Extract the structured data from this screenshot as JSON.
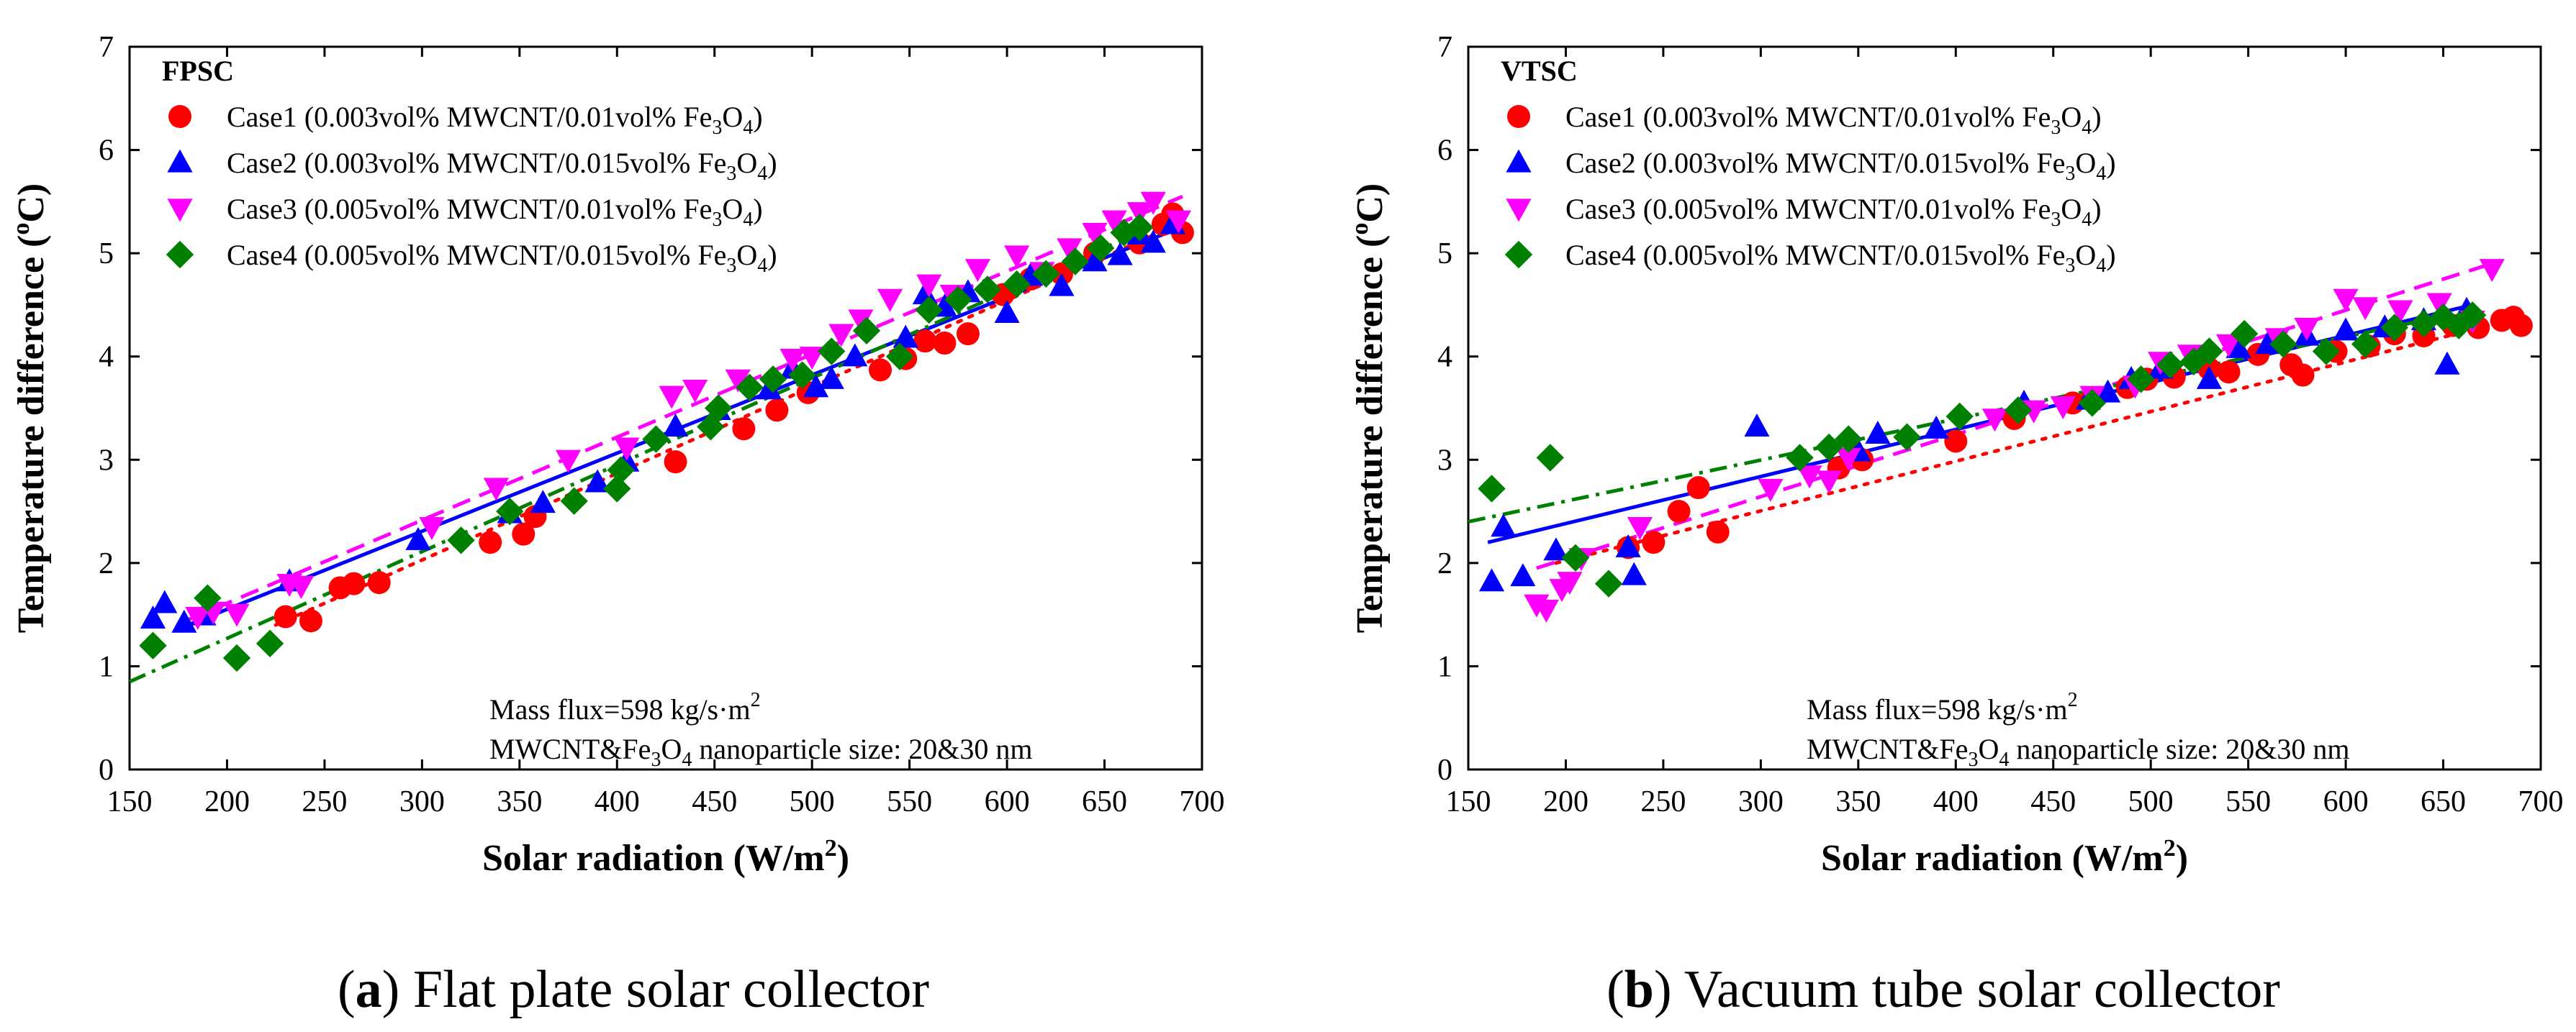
{
  "figure": {
    "captions": [
      {
        "open": "(",
        "letter": "a",
        "close": ")",
        "text": " Flat plate solar collector"
      },
      {
        "open": "(",
        "letter": "b",
        "close": ")",
        "text": " Vacuum tube solar collector"
      }
    ]
  },
  "colors": {
    "case1": "#ff0000",
    "case2": "#0000ff",
    "case3": "#ff00ff",
    "case4": "#008000"
  },
  "chart_data": [
    {
      "type": "scatter",
      "id": "FPSC",
      "panel_label": "FPSC",
      "xlabel": "Solar radiation (W/m",
      "xlabel_sup": "2",
      "xlabel_end": ")",
      "ylabel": "Temperature difference (",
      "ylabel_sup": "o",
      "ylabel_end": "C)",
      "xlim": [
        150,
        700
      ],
      "ylim": [
        0,
        7
      ],
      "xticks": [
        150,
        200,
        250,
        300,
        350,
        400,
        450,
        500,
        550,
        600,
        650,
        700
      ],
      "yticks": [
        0,
        1,
        2,
        3,
        4,
        5,
        6,
        7
      ],
      "legend_position": "top-left",
      "annotations": {
        "line1": "Mass flux=598 kg/s·m",
        "line1_sup": "2",
        "line2_a": "MWCNT&Fe",
        "line2_sub": "3",
        "line2_b": "O",
        "line2_sub2": "4",
        "line2_c": " nanoparticle size: 20&30 nm"
      },
      "series": [
        {
          "name": "Case1",
          "legend_a": "Case1 (0.003vol% MWCNT/0.01vol% Fe",
          "legend_sub": "3",
          "legend_b": "O",
          "legend_sub2": "4",
          "legend_c": ")",
          "marker": "circle",
          "fit": "dot",
          "x": [
            230,
            243,
            258,
            265,
            278,
            335,
            352,
            358,
            430,
            465,
            482,
            498,
            535,
            548,
            558,
            568,
            580,
            598,
            612,
            628,
            645,
            668,
            680,
            685,
            690
          ],
          "y": [
            1.48,
            1.44,
            1.76,
            1.8,
            1.81,
            2.2,
            2.28,
            2.45,
            2.98,
            3.3,
            3.48,
            3.65,
            3.87,
            3.98,
            4.15,
            4.13,
            4.22,
            4.6,
            4.75,
            4.8,
            5.0,
            5.1,
            5.28,
            5.38,
            5.2
          ],
          "fit_line": [
            [
              225,
              1.4
            ],
            [
              690,
              5.3
            ]
          ]
        },
        {
          "name": "Case2",
          "legend_a": "Case2 (0.003vol% MWCNT/0.015vol% Fe",
          "legend_sub": "3",
          "legend_b": "O",
          "legend_sub2": "4",
          "legend_c": ")",
          "marker": "triangle-up",
          "fit": "solid",
          "x": [
            162,
            168,
            178,
            188,
            232,
            298,
            345,
            362,
            390,
            405,
            430,
            452,
            478,
            490,
            502,
            510,
            522,
            548,
            558,
            568,
            580,
            600,
            612,
            628,
            645,
            658,
            668,
            675,
            685
          ],
          "y": [
            1.46,
            1.61,
            1.42,
            1.49,
            1.82,
            2.22,
            2.48,
            2.58,
            2.78,
            2.98,
            3.32,
            3.48,
            3.68,
            3.88,
            3.7,
            3.78,
            4.0,
            4.18,
            4.6,
            4.48,
            4.62,
            4.42,
            4.78,
            4.68,
            4.92,
            4.98,
            5.18,
            5.1,
            5.28
          ],
          "fit_line": [
            [
              180,
              1.4
            ],
            [
              685,
              5.22
            ]
          ]
        },
        {
          "name": "Case3",
          "legend_a": "Case3 (0.005vol% MWCNT/0.01vol% Fe",
          "legend_sub": "3",
          "legend_b": "O",
          "legend_sub2": "4",
          "legend_c": ")",
          "marker": "triangle-down",
          "fit": "dash",
          "x": [
            185,
            193,
            205,
            232,
            238,
            305,
            338,
            375,
            405,
            428,
            440,
            462,
            490,
            500,
            515,
            525,
            540,
            560,
            572,
            585,
            605,
            618,
            632,
            645,
            655,
            668,
            675,
            688
          ],
          "y": [
            1.48,
            1.53,
            1.51,
            1.8,
            1.78,
            2.35,
            2.73,
            3.0,
            3.12,
            3.62,
            3.68,
            3.78,
            3.98,
            4.0,
            4.22,
            4.36,
            4.56,
            4.7,
            4.6,
            4.85,
            4.98,
            4.82,
            5.05,
            5.2,
            5.32,
            5.4,
            5.5,
            5.32
          ],
          "fit_line": [
            [
              180,
              1.45
            ],
            [
              690,
              5.55
            ]
          ]
        },
        {
          "name": "Case4",
          "legend_a": "Case4 (0.005vol% MWCNT/0.015vol% Fe",
          "legend_sub": "3",
          "legend_b": "O",
          "legend_sub2": "4",
          "legend_c": ")",
          "marker": "diamond",
          "fit": "dashdot",
          "x": [
            162,
            190,
            205,
            222,
            320,
            345,
            378,
            400,
            402,
            420,
            448,
            452,
            468,
            480,
            495,
            510,
            528,
            545,
            560,
            575,
            590,
            605,
            620,
            635,
            648,
            660,
            668
          ],
          "y": [
            1.2,
            1.66,
            1.08,
            1.22,
            2.22,
            2.5,
            2.6,
            2.72,
            2.9,
            3.2,
            3.32,
            3.5,
            3.7,
            3.78,
            3.82,
            4.05,
            4.25,
            4.0,
            4.45,
            4.55,
            4.65,
            4.7,
            4.8,
            4.92,
            5.05,
            5.2,
            5.25
          ],
          "fit_line": [
            [
              150,
              0.85
            ],
            [
              670,
              5.22
            ]
          ]
        }
      ]
    },
    {
      "type": "scatter",
      "id": "VTSC",
      "panel_label": "VTSC",
      "xlabel": "Solar radiation (W/m",
      "xlabel_sup": "2",
      "xlabel_end": ")",
      "ylabel": "Temperature difference (",
      "ylabel_sup": "o",
      "ylabel_end": "C)",
      "xlim": [
        150,
        700
      ],
      "ylim": [
        0,
        7
      ],
      "xticks": [
        150,
        200,
        250,
        300,
        350,
        400,
        450,
        500,
        550,
        600,
        650,
        700
      ],
      "yticks": [
        0,
        1,
        2,
        3,
        4,
        5,
        6,
        7
      ],
      "legend_position": "top-left",
      "annotations": {
        "line1": "Mass flux=598 kg/s·m",
        "line1_sup": "2",
        "line2_a": "MWCNT&Fe",
        "line2_sub": "3",
        "line2_b": "O",
        "line2_sub2": "4",
        "line2_c": " nanoparticle size: 20&30 nm"
      },
      "series": [
        {
          "name": "Case1",
          "legend_a": "Case1 (0.003vol% MWCNT/0.01vol% Fe",
          "legend_sub": "3",
          "legend_b": "O",
          "legend_sub2": "4",
          "legend_c": ")",
          "marker": "circle",
          "fit": "dot",
          "x": [
            232,
            245,
            258,
            268,
            278,
            340,
            352,
            400,
            430,
            460,
            470,
            488,
            498,
            512,
            530,
            540,
            555,
            572,
            578,
            595,
            612,
            625,
            640,
            655,
            668,
            680,
            686,
            690
          ],
          "y": [
            2.15,
            2.2,
            2.5,
            2.73,
            2.3,
            2.92,
            3.0,
            3.18,
            3.4,
            3.55,
            3.6,
            3.7,
            3.78,
            3.8,
            3.88,
            3.85,
            4.02,
            3.92,
            3.82,
            4.05,
            4.1,
            4.22,
            4.2,
            4.3,
            4.28,
            4.35,
            4.38,
            4.3
          ],
          "fit_line": [
            [
              195,
              2.0
            ],
            [
              690,
              4.38
            ]
          ]
        },
        {
          "name": "Case2",
          "legend_a": "Case2 (0.003vol% MWCNT/0.015vol% Fe",
          "legend_sub": "3",
          "legend_b": "O",
          "legend_sub2": "4",
          "legend_c": ")",
          "marker": "triangle-up",
          "fit": "solid",
          "x": [
            162,
            168,
            178,
            195,
            232,
            235,
            298,
            350,
            360,
            390,
            435,
            468,
            478,
            490,
            505,
            530,
            545,
            560,
            580,
            600,
            620,
            640,
            652,
            662
          ],
          "y": [
            1.82,
            2.35,
            1.87,
            2.12,
            2.15,
            1.88,
            3.32,
            3.08,
            3.25,
            3.3,
            3.55,
            3.58,
            3.65,
            3.78,
            3.88,
            3.78,
            4.08,
            4.12,
            4.2,
            4.25,
            4.28,
            4.35,
            3.92,
            4.45
          ],
          "fit_line": [
            [
              160,
              2.2
            ],
            [
              665,
              4.5
            ]
          ]
        },
        {
          "name": "Case3",
          "legend_a": "Case3 (0.005vol% MWCNT/0.01vol% Fe",
          "legend_sub": "3",
          "legend_b": "O",
          "legend_sub2": "4",
          "legend_c": ")",
          "marker": "triangle-down",
          "fit": "dash",
          "x": [
            185,
            190,
            198,
            202,
            208,
            238,
            305,
            325,
            335,
            345,
            420,
            440,
            455,
            470,
            492,
            505,
            520,
            540,
            565,
            580,
            600,
            610,
            628,
            648,
            665,
            675
          ],
          "y": [
            1.6,
            1.55,
            1.75,
            1.82,
            2.05,
            2.35,
            2.72,
            2.85,
            2.8,
            3.02,
            3.4,
            3.48,
            3.52,
            3.62,
            3.72,
            3.95,
            4.02,
            4.12,
            4.18,
            4.28,
            4.56,
            4.48,
            4.45,
            4.52,
            4.35,
            4.85
          ],
          "fit_line": [
            [
              185,
              1.95
            ],
            [
              675,
              4.9
            ]
          ]
        },
        {
          "name": "Case4",
          "legend_a": "Case4 (0.005vol% MWCNT/0.015vol% Fe",
          "legend_sub": "3",
          "legend_b": "O",
          "legend_sub2": "4",
          "legend_c": ")",
          "marker": "diamond",
          "fit": "dashdot",
          "x": [
            162,
            192,
            205,
            222,
            320,
            335,
            345,
            375,
            402,
            432,
            470,
            495,
            510,
            522,
            530,
            548,
            568,
            590,
            610,
            625,
            640,
            650,
            658,
            665
          ],
          "y": [
            2.72,
            3.02,
            2.05,
            1.8,
            3.02,
            3.12,
            3.2,
            3.22,
            3.42,
            3.48,
            3.55,
            3.78,
            3.92,
            3.95,
            4.05,
            4.22,
            4.12,
            4.05,
            4.12,
            4.28,
            4.32,
            4.38,
            4.3,
            4.4
          ],
          "fit_line": [
            [
              150,
              2.4
            ],
            [
              665,
              4.45
            ]
          ]
        }
      ]
    }
  ]
}
